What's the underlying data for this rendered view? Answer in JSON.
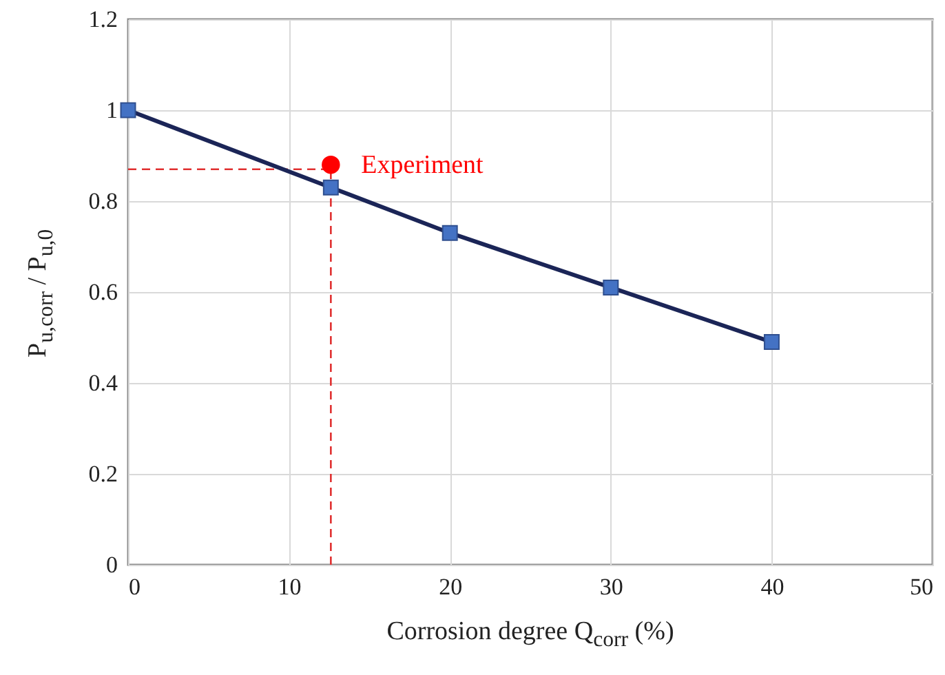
{
  "chart_data": {
    "type": "line",
    "xlabel": "Corrosion degree Q$_{corr}$ (%)",
    "ylabel": "P$_{u,corr}$ / P$_{u,0}$",
    "series": [
      {
        "type": "line",
        "color": "#4472c4",
        "marker": "square",
        "x": [
          0,
          12.6,
          20,
          30,
          40
        ],
        "values": [
          1.0,
          0.83,
          0.73,
          0.61,
          0.49
        ]
      },
      {
        "type": "scatter",
        "name": "Experiment",
        "color": "#ff0000",
        "marker": "circle",
        "x": [
          12.6
        ],
        "values": [
          0.88
        ]
      }
    ],
    "ref_lines": [
      {
        "axis": "y",
        "value": 0.87,
        "color": "#e03030",
        "line_style": "dashed"
      },
      {
        "axis": "x",
        "value": 12.6,
        "color": "#e03030",
        "line_style": "dashed"
      }
    ],
    "xlim": [
      0,
      50
    ],
    "xticks": [
      0,
      10,
      20,
      30,
      40,
      50
    ],
    "ylim": [
      0,
      1.2
    ],
    "yticks": [
      0,
      0.2,
      0.4,
      0.6,
      0.8,
      1,
      1.2
    ],
    "grid": true
  }
}
